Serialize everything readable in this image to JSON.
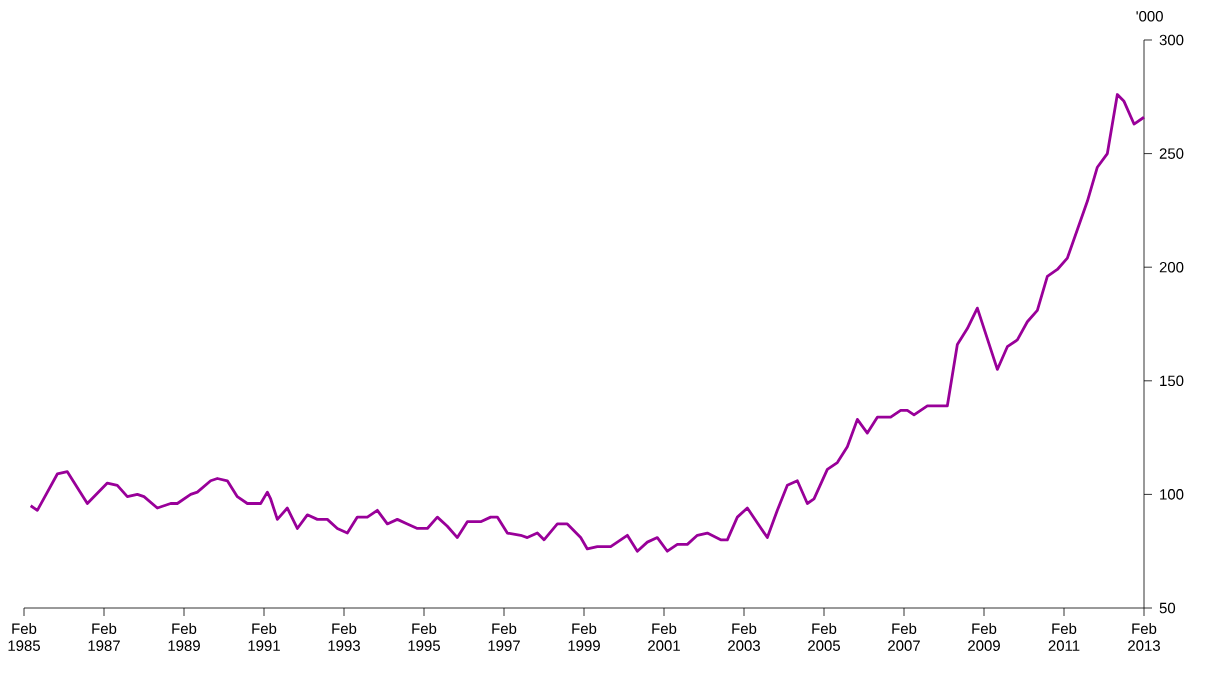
{
  "chart_data": {
    "type": "line",
    "ylabel": "'000",
    "color": "#990099",
    "x": [
      "1985-04",
      "1985-06",
      "1985-12",
      "1986-03",
      "1986-09",
      "1987-03",
      "1987-06",
      "1987-09",
      "1987-12",
      "1988-02",
      "1988-06",
      "1988-10",
      "1988-12",
      "1989-04",
      "1989-06",
      "1989-10",
      "1989-12",
      "1990-03",
      "1990-06",
      "1990-09",
      "1991-01",
      "1991-03",
      "1991-04",
      "1991-06",
      "1991-09",
      "1991-12",
      "1992-03",
      "1992-06",
      "1992-09",
      "1992-12",
      "1993-03",
      "1993-06",
      "1993-09",
      "1993-12",
      "1994-03",
      "1994-06",
      "1994-09",
      "1994-12",
      "1995-03",
      "1995-06",
      "1995-09",
      "1995-12",
      "1996-03",
      "1996-07",
      "1996-10",
      "1996-12",
      "1997-03",
      "1997-07",
      "1997-09",
      "1997-12",
      "1998-02",
      "1998-06",
      "1998-09",
      "1999-01",
      "1999-03",
      "1999-06",
      "1999-10",
      "2000-03",
      "2000-06",
      "2000-09",
      "2000-12",
      "2001-03",
      "2001-06",
      "2001-09",
      "2001-12",
      "2002-03",
      "2002-07",
      "2002-09",
      "2002-12",
      "2003-03",
      "2003-09",
      "2003-12",
      "2004-03",
      "2004-06",
      "2004-09",
      "2004-11",
      "2005-03",
      "2005-06",
      "2005-09",
      "2005-12",
      "2006-03",
      "2006-06",
      "2006-10",
      "2007-01",
      "2007-03",
      "2007-05",
      "2007-09",
      "2008-03",
      "2008-06",
      "2008-09",
      "2008-12",
      "2009-06",
      "2009-09",
      "2009-12",
      "2010-03",
      "2010-06",
      "2010-09",
      "2010-12",
      "2011-03",
      "2011-09",
      "2011-12",
      "2012-03",
      "2012-06",
      "2012-08",
      "2012-11",
      "2013-02"
    ],
    "values": [
      95,
      93,
      109,
      110,
      96,
      105,
      104,
      99,
      100,
      99,
      94,
      96,
      96,
      100,
      101,
      106,
      107,
      106,
      99,
      96,
      96,
      101,
      98,
      89,
      94,
      85,
      91,
      89,
      89,
      85,
      83,
      90,
      90,
      93,
      87,
      89,
      87,
      85,
      85,
      90,
      86,
      81,
      88,
      88,
      90,
      90,
      83,
      82,
      81,
      83,
      80,
      87,
      87,
      81,
      76,
      77,
      77,
      82,
      75,
      79,
      81,
      75,
      78,
      78,
      82,
      83,
      80,
      80,
      90,
      94,
      81,
      93,
      104,
      106,
      96,
      98,
      111,
      114,
      121,
      133,
      127,
      134,
      134,
      137,
      137,
      135,
      139,
      139,
      166,
      173,
      182,
      155,
      165,
      168,
      176,
      181,
      196,
      199,
      204,
      229,
      244,
      250,
      276,
      273,
      263,
      266
    ],
    "xlim": [
      "1985-02",
      "2013-02"
    ],
    "xticks": [
      {
        "value": "1985-02",
        "label": "Feb 1985"
      },
      {
        "value": "1987-02",
        "label": "Feb 1987"
      },
      {
        "value": "1989-02",
        "label": "Feb 1989"
      },
      {
        "value": "1991-02",
        "label": "Feb 1991"
      },
      {
        "value": "1993-02",
        "label": "Feb 1993"
      },
      {
        "value": "1995-02",
        "label": "Feb 1995"
      },
      {
        "value": "1997-02",
        "label": "Feb 1997"
      },
      {
        "value": "1999-02",
        "label": "Feb 1999"
      },
      {
        "value": "2001-02",
        "label": "Feb 2001"
      },
      {
        "value": "2003-02",
        "label": "Feb 2003"
      },
      {
        "value": "2005-02",
        "label": "Feb 2005"
      },
      {
        "value": "2007-02",
        "label": "Feb 2007"
      },
      {
        "value": "2009-02",
        "label": "Feb 2009"
      },
      {
        "value": "2011-02",
        "label": "Feb 2011"
      },
      {
        "value": "2013-02",
        "label": "Feb 2013"
      }
    ],
    "ylim": [
      50,
      300
    ],
    "yticks": [
      50,
      100,
      150,
      200,
      250,
      300
    ],
    "marker": "none",
    "line_style": "solid"
  }
}
